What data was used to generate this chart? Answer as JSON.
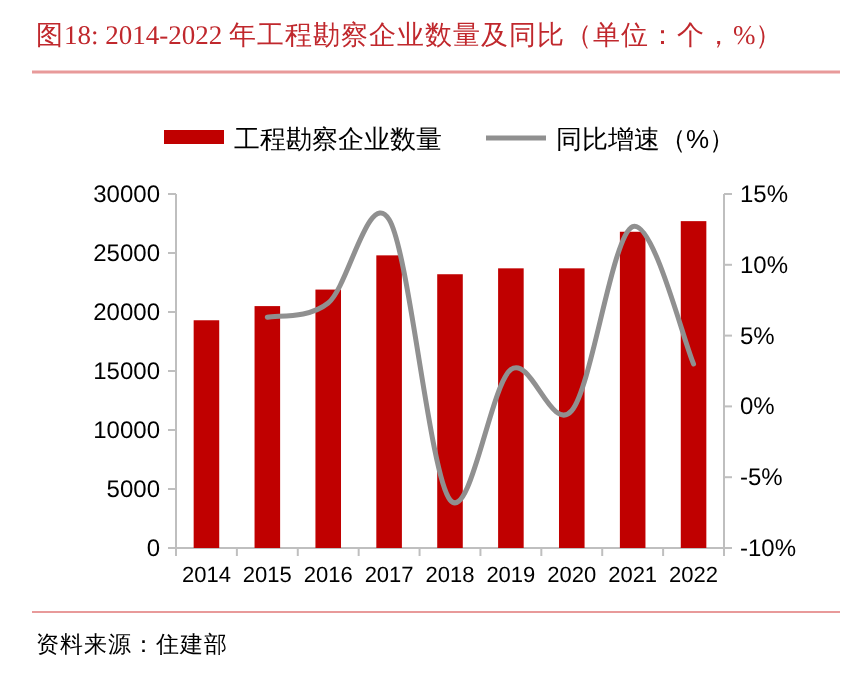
{
  "chart_data": {
    "type": "bar",
    "title": "图18:   2014-2022 年工程勘察企业数量及同比（单位：个，%）",
    "categories": [
      "2014",
      "2015",
      "2016",
      "2017",
      "2018",
      "2019",
      "2020",
      "2021",
      "2022"
    ],
    "series": [
      {
        "name": "工程勘察企业数量",
        "color": "#c00000",
        "values": [
          19300,
          20500,
          21900,
          24800,
          23200,
          23700,
          23700,
          26800,
          27700
        ]
      },
      {
        "name": "同比增速（%）",
        "type": "line",
        "axis": "y2",
        "color": "#909090",
        "values": [
          null,
          6.3,
          7.3,
          13.2,
          -6.6,
          2.6,
          -0.3,
          12.7,
          3.0
        ]
      }
    ],
    "ylim": [
      0,
      30000
    ],
    "yticks": [
      0,
      5000,
      10000,
      15000,
      20000,
      25000,
      30000
    ],
    "y2lim": [
      -10,
      15
    ],
    "y2ticks": [
      {
        "value": -10,
        "label": "-10%"
      },
      {
        "value": -5,
        "label": "-5%"
      },
      {
        "value": 0,
        "label": "0%"
      },
      {
        "value": 5,
        "label": "5%"
      },
      {
        "value": 10,
        "label": "10%"
      },
      {
        "value": 15,
        "label": "15%"
      }
    ],
    "legend": "top",
    "grid": false,
    "marker": "none",
    "annotations": [
      "资料来源：住建部"
    ]
  }
}
